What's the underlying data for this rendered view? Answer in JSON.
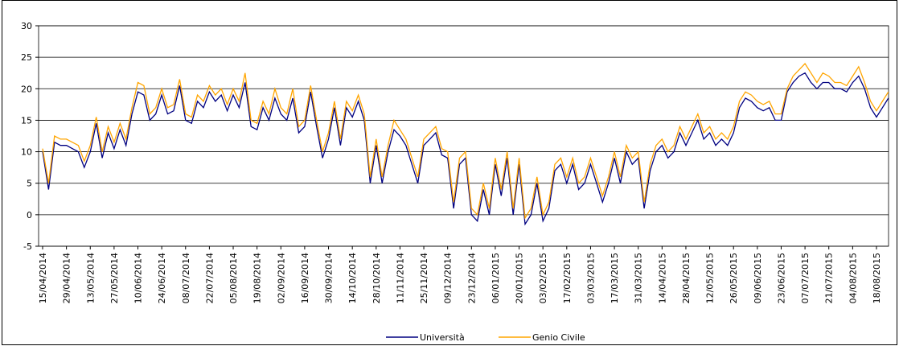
{
  "chart_data": {
    "type": "line",
    "categories": [
      "15/04/2014",
      null,
      null,
      null,
      "29/04/2014",
      null,
      null,
      null,
      "13/05/2014",
      null,
      null,
      null,
      "27/05/2014",
      null,
      null,
      null,
      "10/06/2014",
      null,
      null,
      null,
      "24/06/2014",
      null,
      null,
      null,
      "08/07/2014",
      null,
      null,
      null,
      "22/07/2014",
      null,
      null,
      null,
      "05/08/2014",
      null,
      null,
      null,
      "19/08/2014",
      null,
      null,
      null,
      "02/09/2014",
      null,
      null,
      null,
      "16/09/2014",
      null,
      null,
      null,
      "30/09/2014",
      null,
      null,
      null,
      "14/10/2014",
      null,
      null,
      null,
      "28/10/2014",
      null,
      null,
      null,
      "11/11/2014",
      null,
      null,
      null,
      "25/11/2014",
      null,
      null,
      null,
      "09/12/2014",
      null,
      null,
      null,
      "23/12/2014",
      null,
      null,
      null,
      "06/01/2015",
      null,
      null,
      null,
      "20/01/2015",
      null,
      null,
      null,
      "03/02/2015",
      null,
      null,
      null,
      "17/02/2015",
      null,
      null,
      null,
      "03/03/2015",
      null,
      null,
      null,
      "17/03/2015",
      null,
      null,
      null,
      "31/03/2015",
      null,
      null,
      null,
      "14/04/2015",
      null,
      null,
      null,
      "28/04/2015",
      null,
      null,
      null,
      "12/05/2015",
      null,
      null,
      null,
      "26/05/2015",
      null,
      null,
      null,
      "09/06/2015",
      null,
      null,
      null,
      "23/06/2015",
      null,
      null,
      null,
      "07/07/2015",
      null,
      null,
      null,
      "21/07/2015",
      null,
      null,
      null,
      "04/08/2015",
      null,
      null,
      null,
      "18/08/2015",
      null,
      null
    ],
    "series": [
      {
        "name": "Università",
        "color": "#000080",
        "values": [
          10,
          4,
          11.5,
          11,
          11,
          10.5,
          10,
          7.5,
          10,
          14.5,
          9,
          13,
          10.5,
          13.5,
          11,
          16,
          19.5,
          19,
          15,
          16,
          19,
          16,
          16.5,
          20.5,
          15,
          14.5,
          18,
          17,
          19.5,
          18,
          19,
          16.5,
          19,
          17,
          21,
          14,
          13.5,
          17,
          15,
          18.5,
          16,
          15,
          18.5,
          13,
          14,
          19.5,
          14,
          9,
          12,
          17,
          11,
          17,
          15.5,
          18,
          15,
          5,
          11,
          5,
          10,
          13.5,
          12.5,
          11,
          8,
          5,
          11,
          12,
          13,
          9.5,
          9,
          1,
          8,
          9,
          0,
          -1,
          4,
          0,
          8,
          3,
          9,
          0,
          8,
          -1.5,
          0,
          5,
          -1,
          1,
          7,
          8,
          5,
          8,
          4,
          5,
          8,
          5,
          2,
          5,
          9,
          5,
          10,
          8,
          9,
          1,
          7,
          10,
          11,
          9,
          10,
          13,
          11,
          13,
          15,
          12,
          13,
          11,
          12,
          11,
          13,
          17,
          18.5,
          18,
          17,
          16.5,
          17,
          15,
          15,
          19.5,
          21,
          22,
          22.5,
          21,
          20,
          21,
          21,
          20,
          20,
          19.5,
          21,
          22,
          20,
          17,
          15.5,
          17,
          18.5
        ]
      },
      {
        "name": "Genio Civile",
        "color": "#ffa500",
        "values": [
          10.5,
          5,
          12.5,
          12,
          12,
          11.5,
          11,
          8.5,
          11,
          15.5,
          10,
          14,
          11.5,
          14.5,
          12,
          17,
          21,
          20.5,
          16,
          17,
          20,
          17,
          17.5,
          21.5,
          16,
          15.5,
          19,
          18,
          20.5,
          19,
          20,
          17.5,
          20,
          18,
          22.5,
          15,
          14.5,
          18,
          16,
          20,
          17,
          16,
          20,
          14,
          15,
          20.5,
          15,
          10,
          13,
          18,
          12,
          18,
          16.5,
          19,
          16,
          6,
          12,
          6,
          11,
          15,
          13.5,
          12,
          9,
          6,
          12,
          13,
          14,
          10.5,
          10,
          2,
          9,
          10,
          1,
          0,
          5,
          1,
          9,
          4,
          10,
          1,
          9,
          -0.5,
          1,
          6,
          0,
          2,
          8,
          9,
          6,
          9,
          5,
          6,
          9,
          6,
          3,
          6,
          10,
          6,
          11,
          9,
          10,
          2,
          8,
          11,
          12,
          10,
          11,
          14,
          12,
          14,
          16,
          13,
          14,
          12,
          13,
          12,
          14,
          18,
          19.5,
          19,
          18,
          17.5,
          18,
          16,
          16,
          20,
          22,
          23,
          24,
          22.5,
          21,
          22.5,
          22,
          21,
          21,
          20.5,
          22,
          23.5,
          21,
          18,
          16.5,
          18,
          19.5
        ]
      }
    ],
    "ylim": [
      -5,
      30
    ],
    "yticks": [
      -5,
      0,
      5,
      10,
      15,
      20,
      25,
      30
    ],
    "grid": true
  }
}
